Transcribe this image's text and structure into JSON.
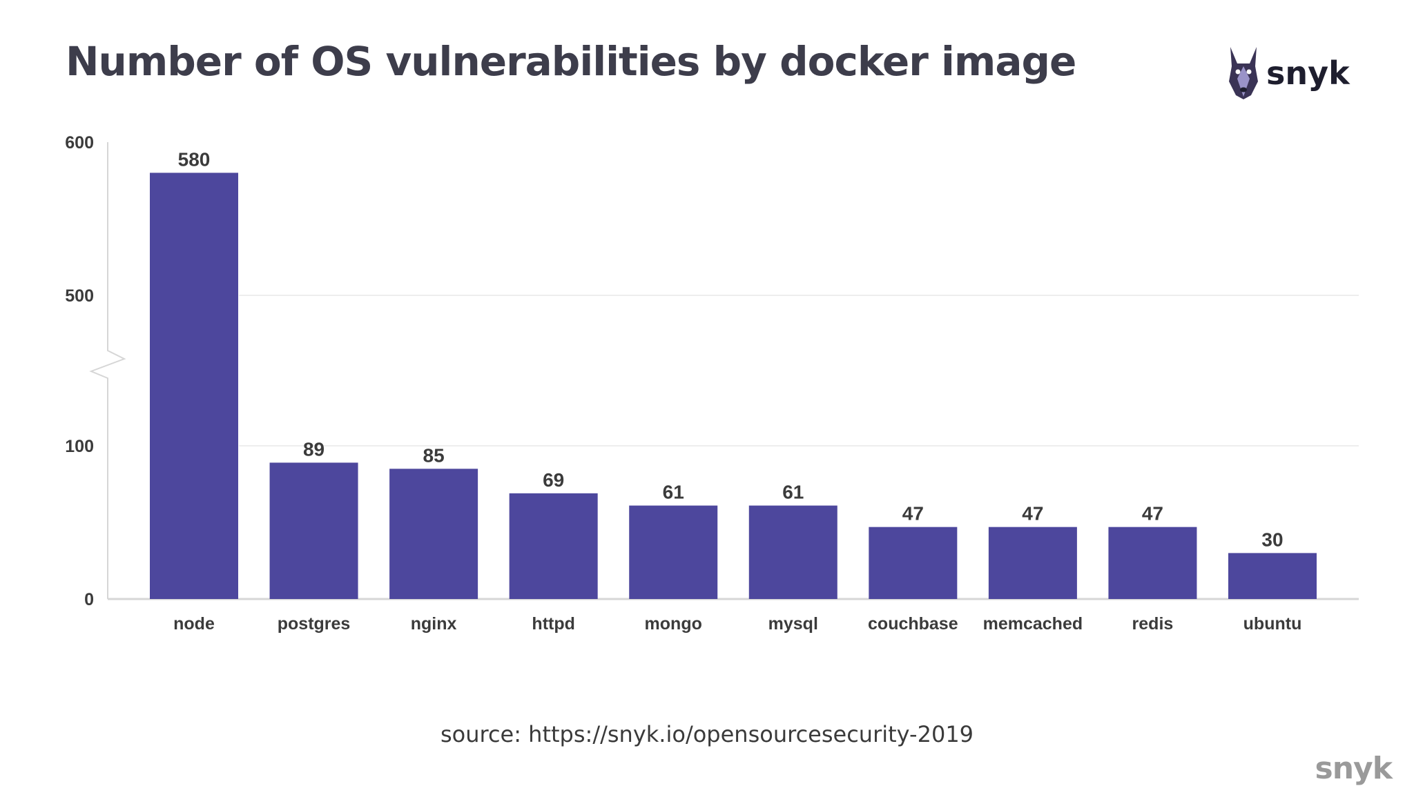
{
  "page": {
    "title": "Number of OS vulnerabilities by docker image",
    "brand": "snyk",
    "source": "source: https://snyk.io/opensourcesecurity-2019",
    "footer_brand": "snyk"
  },
  "colors": {
    "bar": "#4d479d",
    "title": "#3d3d4b",
    "axis_text": "#3b3b3b",
    "gridline": "#eeeeee",
    "axis": "#d6d6d6"
  },
  "icons": {
    "logo": "doberman-dog-icon"
  },
  "chart_data": {
    "type": "bar",
    "title": "Number of OS vulnerabilities by docker image",
    "xlabel": "",
    "ylabel": "",
    "categories": [
      "node",
      "postgres",
      "nginx",
      "httpd",
      "mongo",
      "mysql",
      "couchbase",
      "memcached",
      "redis",
      "ubuntu"
    ],
    "values": [
      580,
      89,
      85,
      69,
      61,
      61,
      47,
      47,
      47,
      30
    ],
    "yticks": [
      0,
      100,
      500,
      600
    ],
    "axis_break": true,
    "ylim": [
      0,
      600
    ],
    "grid": true,
    "legend": "none",
    "data_labels": true
  }
}
